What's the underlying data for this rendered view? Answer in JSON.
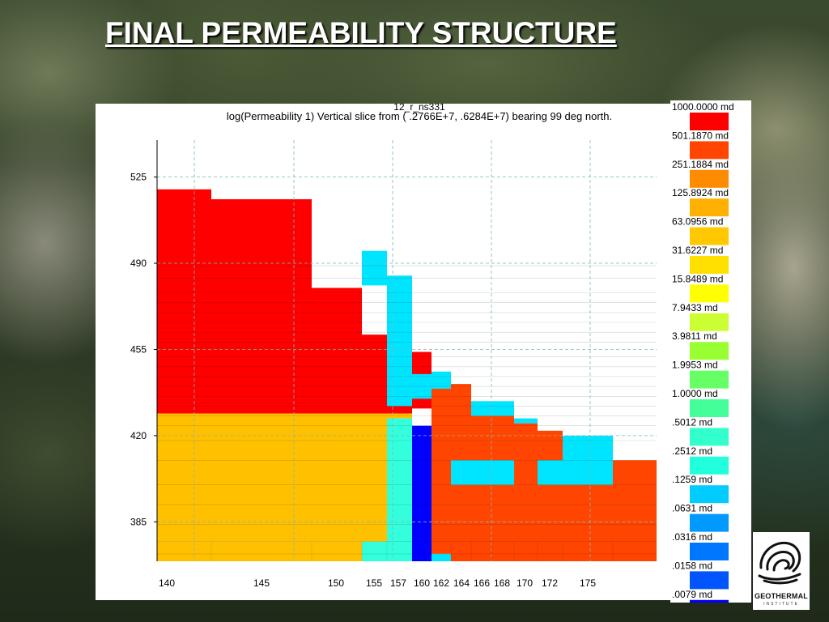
{
  "slide": {
    "title": "FINAL PERMEABILITY STRUCTURE"
  },
  "logo": {
    "text": "GEOTHERMAL",
    "subtext": "INSTITUTE"
  },
  "chart_data": {
    "type": "heatmap",
    "title": "log(Permeability 1) Vertical slice from (  .2766E+7,  .6284E+7) bearing 99 deg north.",
    "top_label": "12_r_ns331",
    "xlabel": "",
    "ylabel": "",
    "x_ticks": [
      "140",
      "145",
      "150",
      "155",
      "157",
      "160",
      "162",
      "164",
      "166",
      "168",
      "170",
      "172",
      "175"
    ],
    "y_ticks": [
      525,
      490,
      455,
      420,
      385
    ],
    "ylim": [
      369,
      540
    ],
    "grid": true,
    "x_column_edges": [
      140,
      142,
      145,
      150,
      155,
      157,
      160,
      162,
      164,
      166,
      168,
      170,
      172,
      175,
      178.5
    ],
    "legend_classes": [
      {
        "label": "1000.0000 md",
        "color": "#ff0000"
      },
      {
        "label": "501.1870 md",
        "color": "#ff4500"
      },
      {
        "label": "251.1884 md",
        "color": "#ff8c00"
      },
      {
        "label": "125.8924 md",
        "color": "#ffb000"
      },
      {
        "label": "63.0956 md",
        "color": "#ffc800"
      },
      {
        "label": "31.6227 md",
        "color": "#ffe000"
      },
      {
        "label": "15.8489 md",
        "color": "#ffff00"
      },
      {
        "label": "7.9433 md",
        "color": "#ccff33"
      },
      {
        "label": "3.9811 md",
        "color": "#99ff33"
      },
      {
        "label": "1.9953 md",
        "color": "#66ff66"
      },
      {
        "label": "1.0000 md",
        "color": "#44ff99"
      },
      {
        "label": ".5012 md",
        "color": "#33ffcc"
      },
      {
        "label": ".2512 md",
        "color": "#22ffdd"
      },
      {
        "label": ".1259 md",
        "color": "#00ccff"
      },
      {
        "label": ".0631 md",
        "color": "#0099ff"
      },
      {
        "label": ".0316 md",
        "color": "#0077ff"
      },
      {
        "label": ".0158 md",
        "color": "#0055ff"
      },
      {
        "label": ".0079 md",
        "color": "#0000ff"
      }
    ],
    "cells": [
      {
        "x0": 140,
        "x1": 142,
        "y0": 429,
        "y1": 520,
        "c": "#ff0000"
      },
      {
        "x0": 142,
        "x1": 145,
        "y0": 429,
        "y1": 516,
        "c": "#ff0000"
      },
      {
        "x0": 145,
        "x1": 150,
        "y0": 429,
        "y1": 480,
        "c": "#ff0000"
      },
      {
        "x0": 150,
        "x1": 155,
        "y0": 429,
        "y1": 461,
        "c": "#ff0000"
      },
      {
        "x0": 155,
        "x1": 157,
        "y0": 429,
        "y1": 432,
        "c": "#ff0000"
      },
      {
        "x0": 157,
        "x1": 160,
        "y0": 431,
        "y1": 454,
        "c": "#ff0000"
      },
      {
        "x0": 160,
        "x1": 162,
        "y0": 437,
        "y1": 439,
        "c": "#ff0000"
      },
      {
        "x0": 140,
        "x1": 155,
        "y0": 377,
        "y1": 429,
        "c": "#ffc000"
      },
      {
        "x0": 140,
        "x1": 150,
        "y0": 369,
        "y1": 377,
        "c": "#ffc000"
      },
      {
        "x0": 155,
        "x1": 157,
        "y0": 427,
        "y1": 429,
        "c": "#ffc000"
      },
      {
        "x0": 150,
        "x1": 155,
        "y0": 481,
        "y1": 495,
        "c": "#00e5ff"
      },
      {
        "x0": 155,
        "x1": 157,
        "y0": 461,
        "y1": 485,
        "c": "#00e5ff"
      },
      {
        "x0": 155,
        "x1": 157,
        "y0": 432,
        "y1": 465,
        "c": "#00e5ff"
      },
      {
        "x0": 157,
        "x1": 160,
        "y0": 435,
        "y1": 445,
        "c": "#00e5ff"
      },
      {
        "x0": 157,
        "x1": 160,
        "y0": 395,
        "y1": 404,
        "c": "#00e5ff"
      },
      {
        "x0": 160,
        "x1": 162,
        "y0": 439,
        "y1": 446,
        "c": "#00e5ff"
      },
      {
        "x0": 160,
        "x1": 162,
        "y0": 369,
        "y1": 372,
        "c": "#00e5ff"
      },
      {
        "x0": 164,
        "x1": 168,
        "y0": 428,
        "y1": 434,
        "c": "#00e5ff"
      },
      {
        "x0": 168,
        "x1": 170,
        "y0": 425,
        "y1": 427,
        "c": "#00e5ff"
      },
      {
        "x0": 172,
        "x1": 175,
        "y0": 404,
        "y1": 420,
        "c": "#00e5ff"
      },
      {
        "x0": 170,
        "x1": 172,
        "y0": 395,
        "y1": 404,
        "c": "#00e5ff"
      },
      {
        "x0": 150,
        "x1": 155,
        "y0": 369,
        "y1": 377,
        "c": "#33ffdd"
      },
      {
        "x0": 155,
        "x1": 157,
        "y0": 369,
        "y1": 427,
        "c": "#33ffdd"
      },
      {
        "x0": 157,
        "x1": 160,
        "y0": 369,
        "y1": 424,
        "c": "#0000ff"
      },
      {
        "x0": 160,
        "x1": 162,
        "y0": 372,
        "y1": 439,
        "c": "#ff4500"
      },
      {
        "x0": 162,
        "x1": 164,
        "y0": 369,
        "y1": 441,
        "c": "#ff4500"
      },
      {
        "x0": 164,
        "x1": 166,
        "y0": 369,
        "y1": 428,
        "c": "#ff4500"
      },
      {
        "x0": 166,
        "x1": 168,
        "y0": 369,
        "y1": 428,
        "c": "#ff4500"
      },
      {
        "x0": 168,
        "x1": 170,
        "y0": 369,
        "y1": 425,
        "c": "#ff4500"
      },
      {
        "x0": 170,
        "x1": 172,
        "y0": 369,
        "y1": 422,
        "c": "#ff4500"
      },
      {
        "x0": 172,
        "x1": 175,
        "y0": 369,
        "y1": 404,
        "c": "#ff4500"
      },
      {
        "x0": 175,
        "x1": 178.5,
        "y0": 369,
        "y1": 410,
        "c": "#ff4500"
      },
      {
        "x0": 162,
        "x1": 164,
        "y0": 400,
        "y1": 410,
        "c": "#00e5ff"
      },
      {
        "x0": 164,
        "x1": 166,
        "y0": 400,
        "y1": 410,
        "c": "#00e5ff"
      },
      {
        "x0": 166,
        "x1": 168,
        "y0": 400,
        "y1": 410,
        "c": "#00e5ff"
      },
      {
        "x0": 170,
        "x1": 172,
        "y0": 400,
        "y1": 410,
        "c": "#00e5ff"
      },
      {
        "x0": 172,
        "x1": 175,
        "y0": 400,
        "y1": 410,
        "c": "#00e5ff"
      }
    ],
    "row_lines": [
      489,
      484,
      478,
      474,
      470,
      466,
      462,
      458,
      452,
      448,
      444,
      440,
      436,
      432,
      428,
      424,
      418,
      410,
      400,
      392,
      384,
      377,
      372
    ]
  }
}
